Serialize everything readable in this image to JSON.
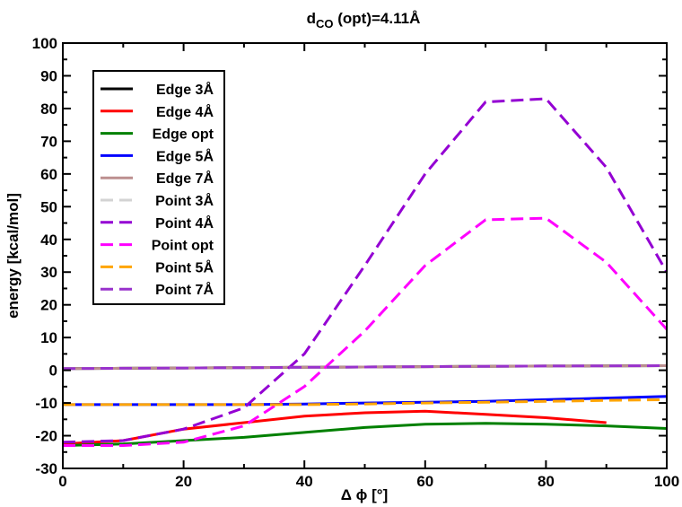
{
  "chart_data": {
    "type": "line",
    "title": "d",
    "title_sub": "CO",
    "title_rest": " (opt)=4.11Å",
    "xlabel": "Δ ϕ [°]",
    "ylabel": "energy [kcal/mol]",
    "xlim": [
      0,
      100
    ],
    "ylim": [
      -30,
      100
    ],
    "xticks": [
      0,
      20,
      40,
      60,
      80,
      100
    ],
    "yticks": [
      -30,
      -20,
      -10,
      0,
      10,
      20,
      30,
      40,
      50,
      60,
      70,
      80,
      90,
      100
    ],
    "legend_position": "top-left",
    "grid": false,
    "series": [
      {
        "name": "Edge 3Å",
        "color": "#000000",
        "dash": "solid",
        "x": [
          0,
          10,
          20,
          30,
          40,
          50,
          60,
          70,
          80,
          90,
          100
        ],
        "y": [
          0.5,
          0.6,
          0.7,
          0.8,
          0.9,
          1.0,
          1.1,
          1.2,
          1.3,
          1.35,
          1.4
        ]
      },
      {
        "name": "Edge 4Å",
        "color": "#ff0000",
        "dash": "solid",
        "x": [
          0,
          10,
          20,
          30,
          40,
          50,
          60,
          70,
          80,
          90
        ],
        "y": [
          -22.5,
          -21.5,
          -18,
          -16,
          -14,
          -13,
          -12.5,
          -13.5,
          -14.5,
          -16
        ]
      },
      {
        "name": "Edge opt",
        "color": "#008000",
        "dash": "solid",
        "x": [
          0,
          10,
          20,
          30,
          40,
          50,
          60,
          70,
          80,
          90,
          100
        ],
        "y": [
          -23,
          -22.5,
          -21.5,
          -20.5,
          -19,
          -17.5,
          -16.5,
          -16.2,
          -16.5,
          -17,
          -17.8
        ]
      },
      {
        "name": "Edge 5Å",
        "color": "#0000ff",
        "dash": "solid",
        "x": [
          0,
          10,
          20,
          30,
          40,
          50,
          60,
          70,
          80,
          90,
          100
        ],
        "y": [
          -10.5,
          -10.5,
          -10.5,
          -10.5,
          -10.3,
          -10,
          -9.8,
          -9.5,
          -9,
          -8.5,
          -8
        ]
      },
      {
        "name": "Edge 7Å",
        "color": "#bc8f8f",
        "dash": "solid",
        "x": [
          0,
          10,
          20,
          30,
          40,
          50,
          60,
          70,
          80,
          90,
          100
        ],
        "y": [
          0.5,
          0.6,
          0.7,
          0.8,
          0.9,
          1.0,
          1.1,
          1.2,
          1.3,
          1.35,
          1.4
        ]
      },
      {
        "name": "Point 3Å",
        "color": "#d3d3d3",
        "dash": "dashed",
        "x": [
          0,
          10,
          20,
          30,
          40,
          50,
          60,
          70,
          80,
          90,
          100
        ],
        "y": [
          0.5,
          0.6,
          0.7,
          0.8,
          0.9,
          1.0,
          1.1,
          1.2,
          1.3,
          1.35,
          1.4
        ]
      },
      {
        "name": "Point 4Å",
        "color": "#9400d3",
        "dash": "dashed",
        "x": [
          0,
          10,
          20,
          30,
          40,
          50,
          60,
          70,
          80,
          90,
          100
        ],
        "y": [
          -22,
          -21.5,
          -18,
          -11.5,
          5,
          32,
          60,
          82,
          83,
          62,
          30
        ]
      },
      {
        "name": "Point opt",
        "color": "#ff00ff",
        "dash": "dashed",
        "x": [
          0,
          10,
          20,
          30,
          40,
          50,
          60,
          70,
          80,
          90,
          100
        ],
        "y": [
          -23,
          -23,
          -22,
          -17,
          -5,
          12,
          32,
          46,
          46.5,
          33,
          12.5
        ]
      },
      {
        "name": "Point 5Å",
        "color": "#ffa500",
        "dash": "dashed",
        "x": [
          0,
          10,
          20,
          30,
          40,
          50,
          60,
          70,
          80,
          90,
          100
        ],
        "y": [
          -10.5,
          -10.5,
          -10.5,
          -10.5,
          -10.5,
          -10.3,
          -10,
          -9.8,
          -9.5,
          -9.2,
          -9
        ]
      },
      {
        "name": "Point 7Å",
        "color": "#9932cc",
        "dash": "dashed",
        "x": [
          0,
          10,
          20,
          30,
          40,
          50,
          60,
          70,
          80,
          90,
          100
        ],
        "y": [
          0.5,
          0.6,
          0.7,
          0.8,
          0.9,
          1.0,
          1.1,
          1.2,
          1.3,
          1.35,
          1.4
        ]
      }
    ]
  }
}
